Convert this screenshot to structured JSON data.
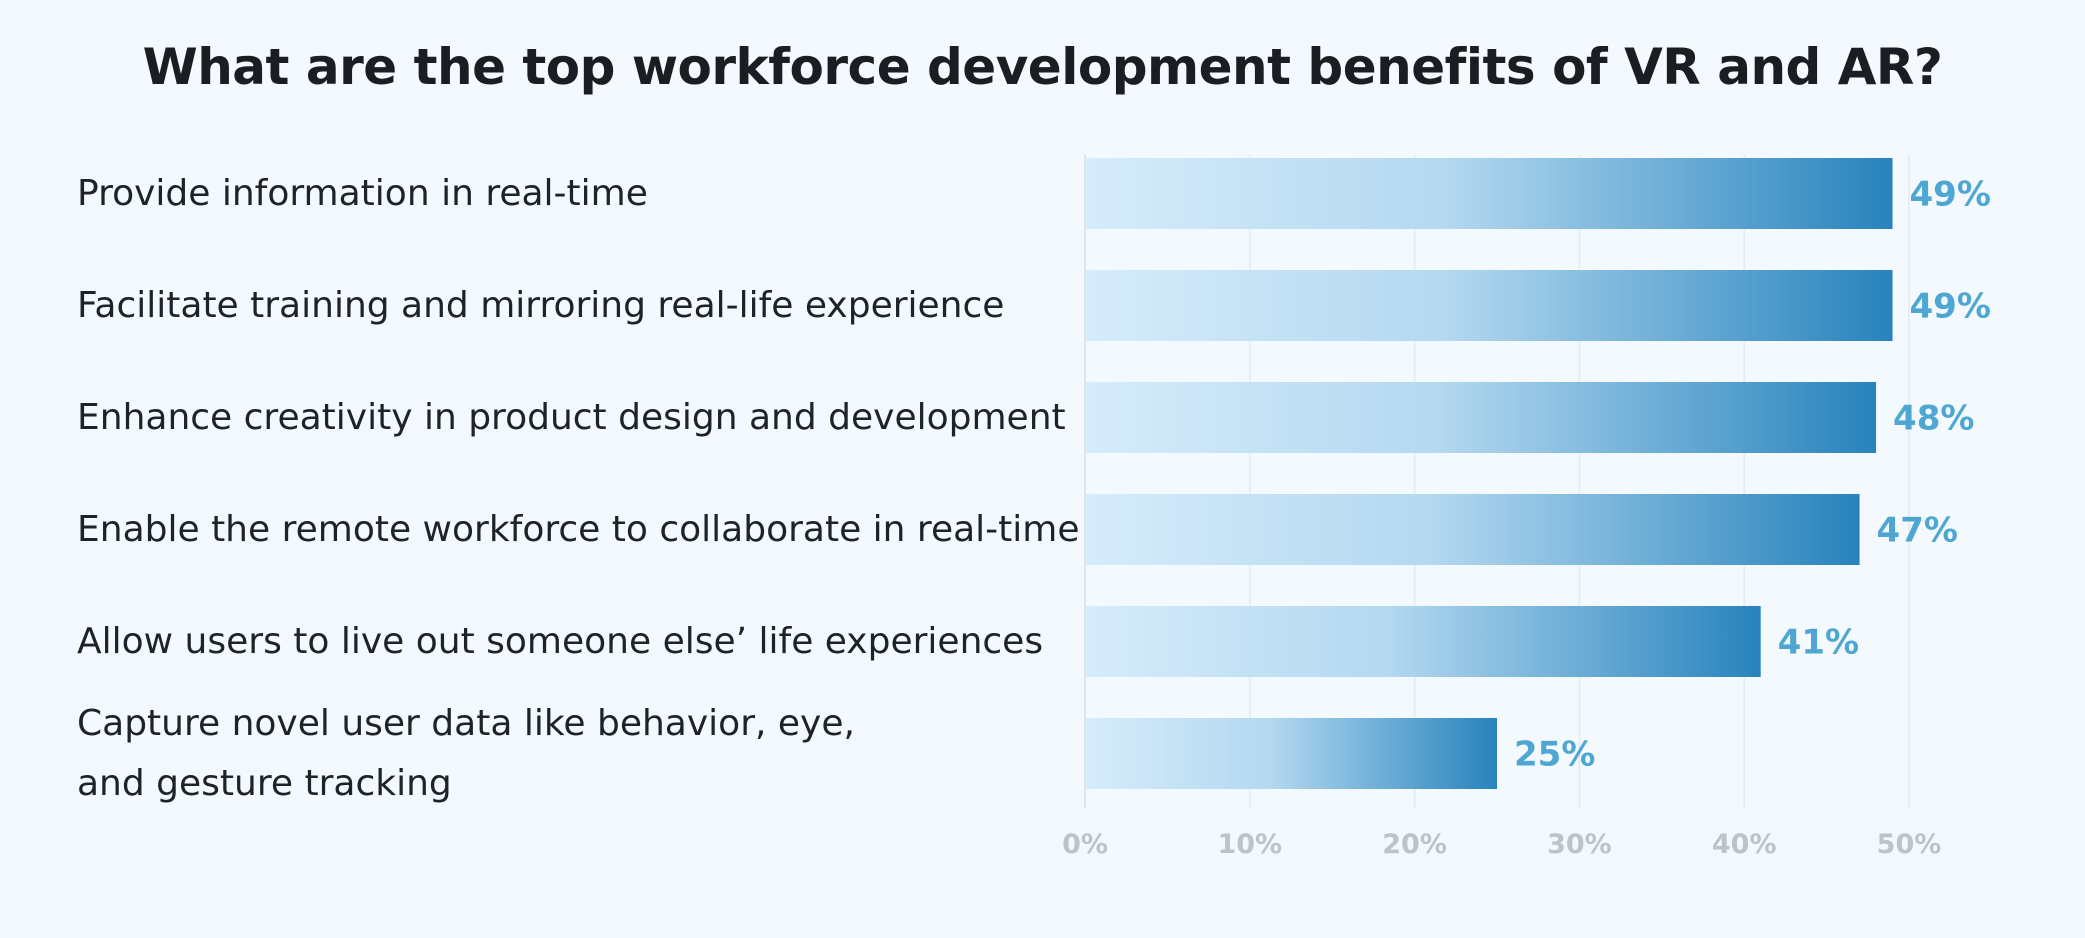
{
  "chart_data": {
    "type": "bar",
    "orientation": "horizontal",
    "title": "What are the top workforce development benefits of VR and AR?",
    "categories": [
      [
        "Provide information in real-time"
      ],
      [
        "Facilitate training and mirroring real-life experience"
      ],
      [
        "Enhance creativity in product design and development"
      ],
      [
        "Enable the remote workforce to collaborate in real-time"
      ],
      [
        "Allow users to live out someone else’ life experiences"
      ],
      [
        "Capture novel user data like behavior, eye,",
        "and gesture tracking"
      ]
    ],
    "values": [
      49,
      49,
      48,
      47,
      41,
      25
    ],
    "value_labels": [
      "49%",
      "49%",
      "48%",
      "47%",
      "41%",
      "25%"
    ],
    "xlim": [
      0,
      50
    ],
    "xticks": [
      0,
      10,
      20,
      30,
      40,
      50
    ],
    "xtick_labels": [
      "0%",
      "10%",
      "20%",
      "30%",
      "40%",
      "50%"
    ],
    "xlabel": "",
    "ylabel": "",
    "grid": true,
    "colors": {
      "bar_start": "#d6ecfb",
      "bar_end": "#2783bd",
      "value_label": "#4ea7d3",
      "tick_label": "#bcc3c9",
      "gridline": "#e4e9ee",
      "axis": "#dfe4e8"
    }
  }
}
